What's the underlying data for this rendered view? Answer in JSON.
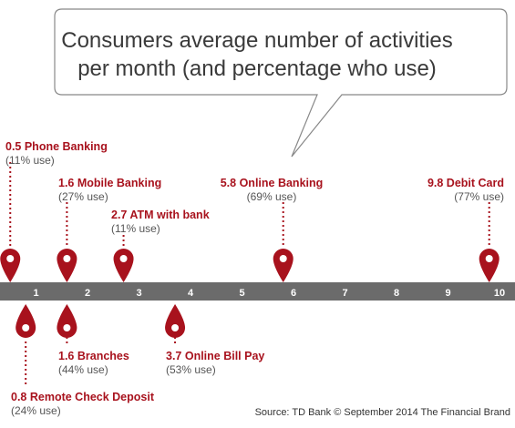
{
  "title_lines": [
    "Consumers average number of activities",
    "per month (and percentage who use)"
  ],
  "source": "Source: TD Bank © September 2014 The Financial Brand",
  "colors": {
    "pin": "#a8121d",
    "axis": "#6b6b6b",
    "bubble_border": "#888888"
  },
  "chart_data": {
    "type": "timeline",
    "title": "Consumers average number of activities per month (and percentage who use)",
    "xlim": [
      0,
      10
    ],
    "ticks": [
      1,
      2,
      3,
      4,
      5,
      6,
      7,
      8,
      9,
      10
    ],
    "points": [
      {
        "activity": "Phone Banking",
        "value": 0.5,
        "usage_pct": 11,
        "label": "0.5 Phone Banking",
        "sub": "(11% use)",
        "side": "above"
      },
      {
        "activity": "Remote Check Deposit",
        "value": 0.8,
        "usage_pct": 24,
        "label": "0.8 Remote Check Deposit",
        "sub": "(24% use)",
        "side": "below"
      },
      {
        "activity": "Mobile Banking",
        "value": 1.6,
        "usage_pct": 27,
        "label": "1.6 Mobile Banking",
        "sub": "(27% use)",
        "side": "above"
      },
      {
        "activity": "Branches",
        "value": 1.6,
        "usage_pct": 44,
        "label": "1.6 Branches",
        "sub": "(44% use)",
        "side": "below"
      },
      {
        "activity": "ATM with bank",
        "value": 2.7,
        "usage_pct": 11,
        "label": "2.7 ATM with bank",
        "sub": "(11% use)",
        "side": "above"
      },
      {
        "activity": "Online Bill Pay",
        "value": 3.7,
        "usage_pct": 53,
        "label": "3.7 Online Bill Pay",
        "sub": "(53% use)",
        "side": "below"
      },
      {
        "activity": "Online Banking",
        "value": 5.8,
        "usage_pct": 69,
        "label": "5.8 Online Banking",
        "sub": "(69% use)",
        "side": "above"
      },
      {
        "activity": "Debit Card",
        "value": 9.8,
        "usage_pct": 77,
        "label": "9.8 Debit Card",
        "sub": "(77% use)",
        "side": "above"
      }
    ]
  }
}
